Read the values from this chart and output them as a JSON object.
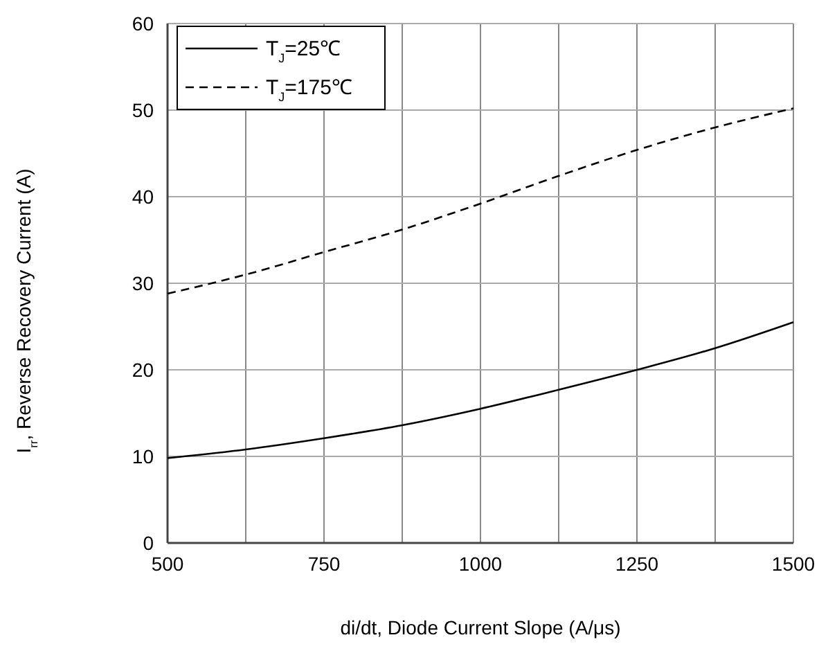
{
  "chart_data": {
    "type": "line",
    "xlabel": "di/dt, Diode Current Slope (A/μs)",
    "ylabel": "I$_{rr}$, Reverse Recovery Current (A)",
    "x": [
      500,
      625,
      750,
      875,
      1000,
      1125,
      1250,
      1375,
      1500
    ],
    "series": [
      {
        "name": "T$_{J}$=25℃",
        "color": "#000000",
        "line_style": "solid",
        "values": [
          9.8,
          10.8,
          12.1,
          13.6,
          15.5,
          17.7,
          20,
          22.5,
          25.5
        ]
      },
      {
        "name": "T$_{J}$=175℃",
        "color": "#000000",
        "line_style": "dashed",
        "values": [
          28.8,
          31.0,
          33.6,
          36.2,
          39.2,
          42.4,
          45.4,
          48.0,
          50.2
        ]
      }
    ],
    "xlim": [
      500,
      1500
    ],
    "xticks": [
      500,
      {
        "value": 625,
        "label": null
      },
      750,
      {
        "value": 875,
        "label": null
      },
      1000,
      {
        "value": 1125,
        "label": null
      },
      1250,
      {
        "value": 1375,
        "label": null
      },
      1500
    ],
    "ylim": [
      0,
      60
    ],
    "yticks": [
      0,
      10,
      20,
      30,
      40,
      50,
      60
    ],
    "grid": true,
    "legend": "top left",
    "marker": "none"
  }
}
